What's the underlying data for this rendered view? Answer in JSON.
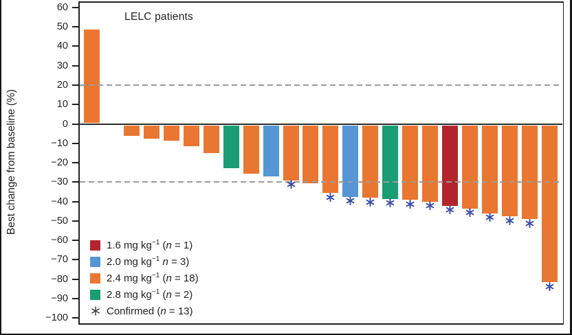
{
  "figure": {
    "annotation": "LELC patients",
    "y_axis_label": "Best change from baseline (%)"
  },
  "colors": {
    "dose_1_6": "#b2252f",
    "dose_2_0": "#5596d6",
    "dose_2_4": "#e97731",
    "dose_2_8": "#189e72",
    "confirmed_star": "#3a4aa8",
    "legend_star": "#3a3a3a",
    "reference_line": "#9a9a9a",
    "axis": "#231f20"
  },
  "legend": {
    "items": [
      {
        "type": "swatch",
        "dose": "1.6",
        "pre": "1.6 mg kg",
        "sup": "−1",
        "open": " (",
        "nvar": "n",
        "tail": " = 1)"
      },
      {
        "type": "swatch",
        "dose": "2.0",
        "pre": "2.0 mg kg",
        "sup": "−1",
        "open": " ",
        "nvar": "n",
        "tail": " = 3)"
      },
      {
        "type": "swatch",
        "dose": "2.4",
        "pre": "2.4 mg kg",
        "sup": "−1",
        "open": " (",
        "nvar": "n",
        "tail": " = 18)"
      },
      {
        "type": "swatch",
        "dose": "2.8",
        "pre": "2.8 mg kg",
        "sup": "−1",
        "open": " (",
        "nvar": "n",
        "tail": " = 2)"
      },
      {
        "type": "star",
        "dose": "",
        "pre": "Confirmed",
        "sup": "",
        "open": " (",
        "nvar": "n",
        "tail": " = 13)"
      }
    ]
  },
  "chart_data": {
    "type": "bar",
    "title": "LELC patients",
    "xlabel": "",
    "ylabel": "Best change from baseline (%)",
    "ylim": [
      -100,
      60
    ],
    "yticks": [
      60,
      50,
      40,
      30,
      20,
      10,
      0,
      -10,
      -20,
      -30,
      -40,
      -50,
      -60,
      -70,
      -80,
      -90,
      -100
    ],
    "ytick_labels": [
      "60",
      "50",
      "40",
      "30",
      "20",
      "10",
      "0",
      "−10",
      "−20",
      "−30",
      "−40",
      "−50",
      "−60",
      "−70",
      "−80",
      "−90",
      "−100"
    ],
    "reference_lines": [
      20,
      -30
    ],
    "grid": "dashed horizontal reference lines at 20 and -30 only",
    "legend_position": "lower left inside plot",
    "bars": [
      {
        "value": 49,
        "dose": "2.4",
        "confirmed": false
      },
      {
        "value": 0,
        "dose": "2.0",
        "confirmed": false
      },
      {
        "value": -6.5,
        "dose": "2.4",
        "confirmed": false
      },
      {
        "value": -8,
        "dose": "2.4",
        "confirmed": false
      },
      {
        "value": -9,
        "dose": "2.4",
        "confirmed": false
      },
      {
        "value": -12,
        "dose": "2.4",
        "confirmed": false
      },
      {
        "value": -15.5,
        "dose": "2.4",
        "confirmed": false
      },
      {
        "value": -23,
        "dose": "2.8",
        "confirmed": false
      },
      {
        "value": -26,
        "dose": "2.4",
        "confirmed": false
      },
      {
        "value": -27.5,
        "dose": "2.0",
        "confirmed": false
      },
      {
        "value": -29.5,
        "dose": "2.4",
        "confirmed": true
      },
      {
        "value": -31,
        "dose": "2.4",
        "confirmed": false
      },
      {
        "value": -36,
        "dose": "2.4",
        "confirmed": true
      },
      {
        "value": -38,
        "dose": "2.0",
        "confirmed": true
      },
      {
        "value": -38.5,
        "dose": "2.4",
        "confirmed": true
      },
      {
        "value": -39,
        "dose": "2.8",
        "confirmed": true
      },
      {
        "value": -39.5,
        "dose": "2.4",
        "confirmed": true
      },
      {
        "value": -40.5,
        "dose": "2.4",
        "confirmed": true
      },
      {
        "value": -42.5,
        "dose": "1.6",
        "confirmed": true
      },
      {
        "value": -44,
        "dose": "2.4",
        "confirmed": true
      },
      {
        "value": -46.5,
        "dose": "2.4",
        "confirmed": true
      },
      {
        "value": -48,
        "dose": "2.4",
        "confirmed": true
      },
      {
        "value": -49.5,
        "dose": "2.4",
        "confirmed": true
      },
      {
        "value": -82,
        "dose": "2.4",
        "confirmed": true
      }
    ]
  }
}
